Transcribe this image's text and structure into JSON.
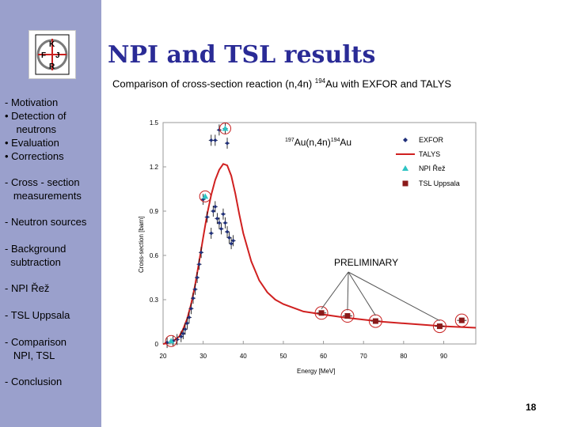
{
  "slide": {
    "title": "NPI and TSL results",
    "subtitle_pre": "Comparison of cross-section reaction (n,4n) ",
    "subtitle_sup": "194",
    "subtitle_post": "Au with EXFOR and TALYS",
    "page_number": "18",
    "logo_letters": [
      "K",
      "F",
      "J",
      "R"
    ]
  },
  "sidebar": {
    "items": [
      {
        "lines": [
          "- Motivation",
          "•  Detection of",
          "    neutrons",
          "•  Evaluation",
          "•  Corrections"
        ]
      },
      {
        "lines": [
          "- Cross - section",
          "   measurements"
        ]
      },
      {
        "lines": [
          "- Neutron sources"
        ]
      },
      {
        "lines": [
          "- Background",
          "  subtraction"
        ]
      },
      {
        "lines": [
          "- NPI Řež"
        ]
      },
      {
        "lines": [
          "- TSL Uppsala"
        ]
      },
      {
        "lines": [
          "- Comparison",
          "   NPI, TSL"
        ]
      },
      {
        "lines": [
          "- Conclusion"
        ]
      }
    ]
  },
  "chart_data": {
    "type": "scatter",
    "title": "",
    "xlabel": "Energy [MeV]",
    "ylabel": "Cross-section  [barn]",
    "xlim": [
      20,
      98
    ],
    "ylim": [
      0,
      1.5
    ],
    "xticks": [
      "20",
      "30",
      "40",
      "50",
      "60",
      "70",
      "80",
      "90"
    ],
    "yticks": [
      "0",
      "0.3",
      "0.6",
      "0.9",
      "1.2",
      "1.5"
    ],
    "reaction_label": {
      "sup1": "197",
      "mid": "Au(n,4n)",
      "sup2": "194",
      "end": "Au"
    },
    "annotation": "PRELIMINARY",
    "preliminary_targets": [
      [
        59.5,
        0.2
      ],
      [
        66,
        0.19
      ],
      [
        73,
        0.155
      ],
      [
        89,
        0.12
      ]
    ],
    "legend": [
      {
        "label": "EXFOR",
        "marker": "diamond",
        "color": "#1f2f7a"
      },
      {
        "label": "TALYS",
        "marker": "line",
        "color": "#d02020"
      },
      {
        "label": "NPI Řež",
        "marker": "triangle",
        "color": "#2ec4c4"
      },
      {
        "label": "TSL Uppsala",
        "marker": "square",
        "color": "#8b1a1a"
      }
    ],
    "series": [
      {
        "name": "TALYS",
        "color": "#d02020",
        "x": [
          20,
          22,
          24,
          25,
          26,
          27,
          28,
          29,
          30,
          31,
          32,
          33,
          34,
          35,
          36,
          37,
          38,
          39,
          40,
          42,
          44,
          46,
          48,
          50,
          55,
          60,
          65,
          70,
          75,
          80,
          85,
          90,
          98
        ],
        "y": [
          0,
          0.01,
          0.05,
          0.1,
          0.17,
          0.27,
          0.4,
          0.56,
          0.72,
          0.88,
          1.01,
          1.11,
          1.18,
          1.22,
          1.21,
          1.14,
          1.02,
          0.88,
          0.75,
          0.56,
          0.43,
          0.35,
          0.3,
          0.27,
          0.22,
          0.2,
          0.18,
          0.165,
          0.15,
          0.14,
          0.13,
          0.12,
          0.11
        ]
      },
      {
        "name": "EXFOR",
        "color": "#1f2f7a",
        "points": [
          [
            21,
            0.01
          ],
          [
            22.5,
            0.02
          ],
          [
            23.5,
            0.03
          ],
          [
            24.5,
            0.05
          ],
          [
            25,
            0.07
          ],
          [
            25.5,
            0.1
          ],
          [
            26,
            0.14
          ],
          [
            26.5,
            0.18
          ],
          [
            27,
            0.24
          ],
          [
            27.5,
            0.31
          ],
          [
            28,
            0.37
          ],
          [
            28.5,
            0.45
          ],
          [
            29,
            0.54
          ],
          [
            29.5,
            0.62
          ],
          [
            30,
            0.98
          ],
          [
            31,
            0.86
          ],
          [
            32,
            0.75
          ],
          [
            32.5,
            0.9
          ],
          [
            33,
            0.93
          ],
          [
            33.5,
            0.85
          ],
          [
            34,
            0.82
          ],
          [
            34.5,
            0.78
          ],
          [
            35,
            0.88
          ],
          [
            35.5,
            0.82
          ],
          [
            36,
            0.76
          ],
          [
            36.5,
            0.72
          ],
          [
            37,
            0.68
          ],
          [
            37.5,
            0.7
          ],
          [
            32,
            1.38
          ],
          [
            33,
            1.38
          ],
          [
            34,
            1.45
          ],
          [
            35.5,
            1.46
          ],
          [
            36,
            1.36
          ]
        ]
      },
      {
        "name": "NPI Řež",
        "color": "#2ec4c4",
        "points": [
          [
            22,
            0.02
          ],
          [
            30.5,
            1.0
          ],
          [
            35.5,
            1.46
          ]
        ]
      },
      {
        "name": "TSL Uppsala",
        "color": "#8b1a1a",
        "points": [
          [
            59.5,
            0.21
          ],
          [
            66,
            0.19
          ],
          [
            73,
            0.155
          ],
          [
            89,
            0.12
          ],
          [
            94.5,
            0.16
          ]
        ]
      }
    ]
  }
}
